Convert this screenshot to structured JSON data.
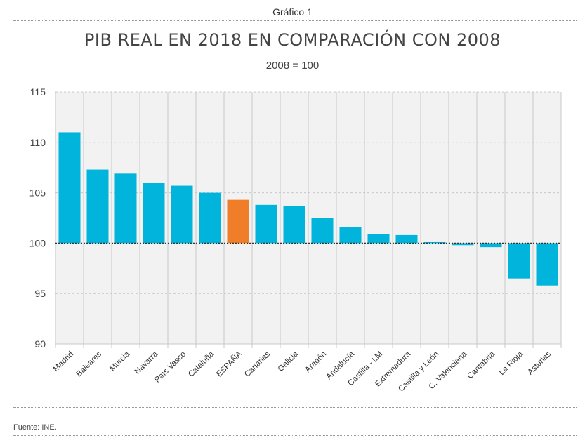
{
  "header": {
    "label": "Gráfico 1",
    "title": "PIB REAL EN 2018 EN COMPARACIÓN CON 2008",
    "subtitle": "2008 = 100"
  },
  "footer": {
    "source": "Fuente: INE."
  },
  "chart_data": {
    "type": "bar",
    "title": "PIB REAL EN 2018 EN COMPARACIÓN CON 2008",
    "subtitle": "2008 = 100",
    "xlabel": "",
    "ylabel": "",
    "ylim": [
      90,
      115
    ],
    "yticks": [
      90,
      95,
      100,
      105,
      110,
      115
    ],
    "baseline": 100,
    "grid": true,
    "categories": [
      "Madrid",
      "Baleares",
      "Murcia",
      "Navarra",
      "País Vasco",
      "Cataluña",
      "ESPAÑA",
      "Canarias",
      "Galicia",
      "Aragón",
      "Andalucía",
      "Castilla - LM",
      "Extremadura",
      "Castilla y León",
      "C. Valenciana",
      "Cantabria",
      "La Rioja",
      "Asturias"
    ],
    "values": [
      111.0,
      107.3,
      106.9,
      106.0,
      105.7,
      105.0,
      104.3,
      103.8,
      103.7,
      102.5,
      101.6,
      100.9,
      100.8,
      100.1,
      99.8,
      99.6,
      96.5,
      95.8
    ],
    "colors": {
      "default": "#00b4dc",
      "highlight": "#f07d28",
      "plot_bg": "#f2f2f2"
    },
    "highlight": "ESPAÑA"
  }
}
